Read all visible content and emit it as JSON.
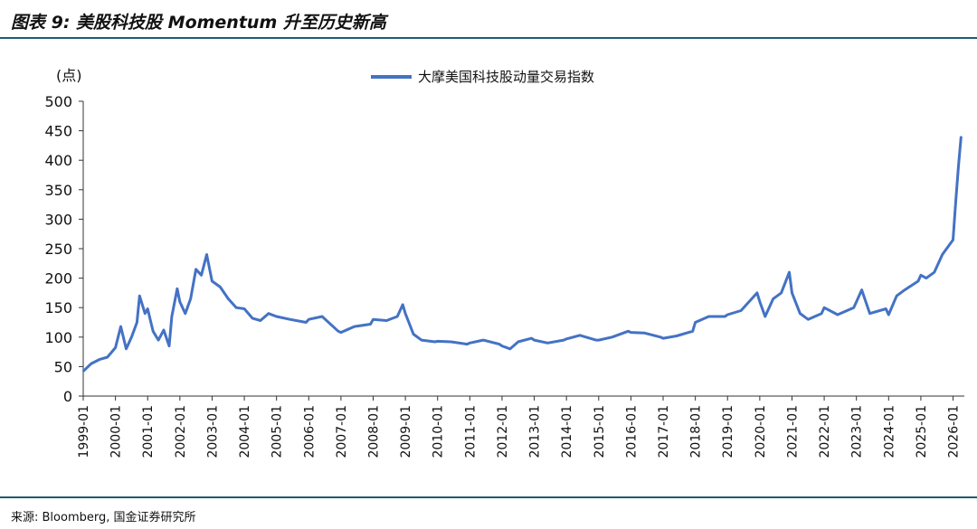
{
  "figure": {
    "title": "图表 9:  美股科技股 Momentum 升至历史新高",
    "source": "来源:  Bloomberg,  国金证券研究所"
  },
  "colors": {
    "series": "#4472c4",
    "rule": "#1f5b70",
    "axis": "#333333"
  },
  "chart_data": {
    "type": "line",
    "unit_label": "(点)",
    "title": "",
    "xlabel": "",
    "ylabel": "(点)",
    "ylim": [
      0,
      500
    ],
    "yticks": [
      0,
      50,
      100,
      150,
      200,
      250,
      300,
      350,
      400,
      450,
      500
    ],
    "xticks": [
      "1999-01",
      "2000-01",
      "2001-01",
      "2002-01",
      "2003-01",
      "2004-01",
      "2005-01",
      "2006-01",
      "2007-01",
      "2008-01",
      "2009-01",
      "2010-01",
      "2011-01",
      "2012-01",
      "2013-01",
      "2014-01",
      "2015-01",
      "2016-01",
      "2017-01",
      "2018-01",
      "2019-01",
      "2020-01",
      "2021-01",
      "2022-01",
      "2023-01",
      "2024-01",
      "2025-01",
      "2026-01"
    ],
    "grid": false,
    "legend_position": "top-center",
    "series": [
      {
        "name": "大摩美国科技股动量交易指数",
        "points": [
          [
            "1999-01",
            42
          ],
          [
            "1999-04",
            55
          ],
          [
            "1999-07",
            62
          ],
          [
            "1999-10",
            66
          ],
          [
            "2000-01",
            82
          ],
          [
            "2000-03",
            118
          ],
          [
            "2000-05",
            80
          ],
          [
            "2000-07",
            100
          ],
          [
            "2000-09",
            125
          ],
          [
            "2000-10",
            170
          ],
          [
            "2000-12",
            140
          ],
          [
            "2001-01",
            148
          ],
          [
            "2001-03",
            110
          ],
          [
            "2001-05",
            95
          ],
          [
            "2001-07",
            112
          ],
          [
            "2001-09",
            85
          ],
          [
            "2001-10",
            135
          ],
          [
            "2001-12",
            182
          ],
          [
            "2002-01",
            160
          ],
          [
            "2002-03",
            140
          ],
          [
            "2002-05",
            165
          ],
          [
            "2002-07",
            215
          ],
          [
            "2002-09",
            205
          ],
          [
            "2002-11",
            240
          ],
          [
            "2003-01",
            195
          ],
          [
            "2003-04",
            185
          ],
          [
            "2003-07",
            165
          ],
          [
            "2003-10",
            150
          ],
          [
            "2004-01",
            148
          ],
          [
            "2004-04",
            132
          ],
          [
            "2004-07",
            128
          ],
          [
            "2004-10",
            140
          ],
          [
            "2005-01",
            135
          ],
          [
            "2005-06",
            130
          ],
          [
            "2005-12",
            125
          ],
          [
            "2006-01",
            130
          ],
          [
            "2006-06",
            135
          ],
          [
            "2006-12",
            110
          ],
          [
            "2007-01",
            108
          ],
          [
            "2007-06",
            118
          ],
          [
            "2007-12",
            122
          ],
          [
            "2008-01",
            130
          ],
          [
            "2008-06",
            128
          ],
          [
            "2008-10",
            135
          ],
          [
            "2008-12",
            155
          ],
          [
            "2009-01",
            140
          ],
          [
            "2009-04",
            105
          ],
          [
            "2009-07",
            95
          ],
          [
            "2009-12",
            92
          ],
          [
            "2010-01",
            93
          ],
          [
            "2010-06",
            92
          ],
          [
            "2010-12",
            88
          ],
          [
            "2011-01",
            90
          ],
          [
            "2011-06",
            95
          ],
          [
            "2011-12",
            88
          ],
          [
            "2012-01",
            85
          ],
          [
            "2012-04",
            80
          ],
          [
            "2012-07",
            92
          ],
          [
            "2012-12",
            98
          ],
          [
            "2013-01",
            95
          ],
          [
            "2013-06",
            90
          ],
          [
            "2013-12",
            95
          ],
          [
            "2014-01",
            97
          ],
          [
            "2014-06",
            103
          ],
          [
            "2014-12",
            95
          ],
          [
            "2015-01",
            95
          ],
          [
            "2015-06",
            100
          ],
          [
            "2015-12",
            110
          ],
          [
            "2016-01",
            108
          ],
          [
            "2016-06",
            107
          ],
          [
            "2016-12",
            100
          ],
          [
            "2017-01",
            98
          ],
          [
            "2017-06",
            102
          ],
          [
            "2017-12",
            110
          ],
          [
            "2018-01",
            125
          ],
          [
            "2018-06",
            135
          ],
          [
            "2018-12",
            135
          ],
          [
            "2019-01",
            138
          ],
          [
            "2019-06",
            145
          ],
          [
            "2019-12",
            175
          ],
          [
            "2020-01",
            160
          ],
          [
            "2020-03",
            135
          ],
          [
            "2020-06",
            165
          ],
          [
            "2020-09",
            175
          ],
          [
            "2020-12",
            210
          ],
          [
            "2021-01",
            175
          ],
          [
            "2021-04",
            140
          ],
          [
            "2021-07",
            130
          ],
          [
            "2021-12",
            140
          ],
          [
            "2022-01",
            150
          ],
          [
            "2022-06",
            138
          ],
          [
            "2022-12",
            150
          ],
          [
            "2023-01",
            160
          ],
          [
            "2023-03",
            180
          ],
          [
            "2023-06",
            140
          ],
          [
            "2023-12",
            148
          ],
          [
            "2024-01",
            138
          ],
          [
            "2024-04",
            170
          ],
          [
            "2024-07",
            180
          ],
          [
            "2024-12",
            195
          ],
          [
            "2025-01",
            205
          ],
          [
            "2025-03",
            200
          ],
          [
            "2025-06",
            210
          ],
          [
            "2025-09",
            240
          ],
          [
            "2026-01",
            265
          ],
          [
            "2026-02",
            330
          ],
          [
            "2026-03",
            390
          ],
          [
            "2026-04",
            440
          ]
        ]
      }
    ]
  }
}
